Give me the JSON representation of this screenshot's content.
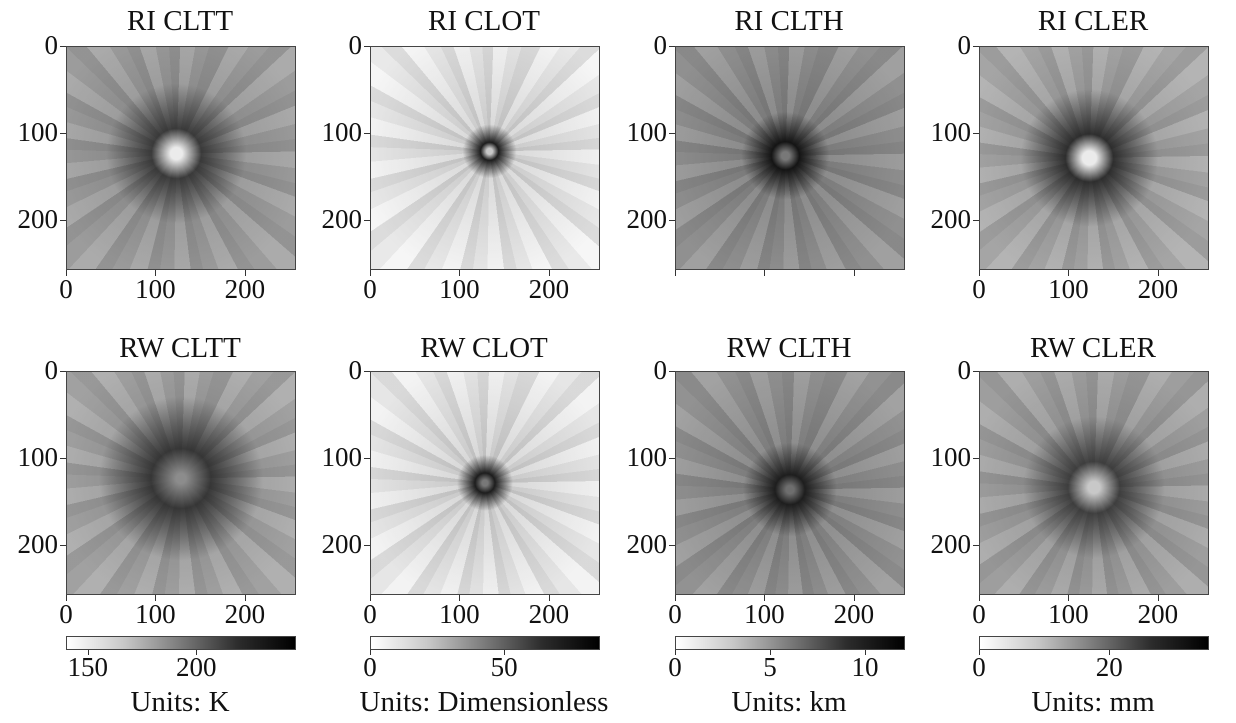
{
  "panels": [
    {
      "title": "RI CLTT",
      "style": "cltt-ri"
    },
    {
      "title": "RI CLOT",
      "style": "clot-ri"
    },
    {
      "title": "RI CLTH",
      "style": "clth-ri"
    },
    {
      "title": "RI CLER",
      "style": "cler-ri"
    },
    {
      "title": "RW CLTT",
      "style": "cltt-rw"
    },
    {
      "title": "RW CLOT",
      "style": "clot-rw"
    },
    {
      "title": "RW CLTH",
      "style": "clth-rw"
    },
    {
      "title": "RW CLER",
      "style": "cler-rw"
    }
  ],
  "axis_ticks": [
    "0",
    "100",
    "200"
  ],
  "colorbars": [
    {
      "ticks": [
        "150",
        "200"
      ],
      "units": "Units: K"
    },
    {
      "ticks": [
        "0",
        "50"
      ],
      "units": "Units: Dimensionless"
    },
    {
      "ticks": [
        "0",
        "5",
        "10"
      ],
      "units": "Units: km"
    },
    {
      "ticks": [
        "0",
        "20"
      ],
      "units": "Units: mm"
    }
  ]
}
